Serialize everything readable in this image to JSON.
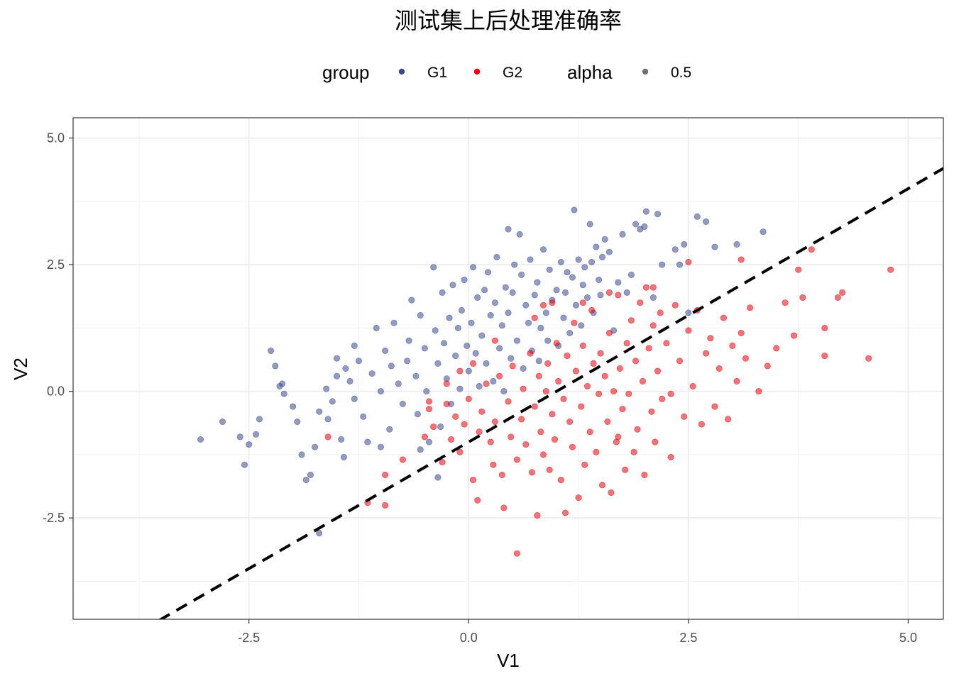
{
  "chart_data": {
    "type": "scatter",
    "title": "测试集上后处理准确率",
    "xlabel": "V1",
    "ylabel": "V2",
    "xlim": [
      -4.5,
      5.4
    ],
    "ylim": [
      -4.5,
      5.4
    ],
    "x_ticks": [
      -2.5,
      0.0,
      2.5,
      5.0
    ],
    "x_tick_labels": [
      "-2.5",
      "0.0",
      "2.5",
      "5.0"
    ],
    "y_ticks": [
      -2.5,
      0.0,
      2.5,
      5.0
    ],
    "y_tick_labels": [
      "-2.5",
      "0.0",
      "2.5",
      "5.0"
    ],
    "grid": true,
    "legend_position": "top",
    "legend": {
      "group_title": "group",
      "group_entries": [
        {
          "label": "G1",
          "color": "#3b4a8c"
        },
        {
          "label": "G2",
          "color": "#e8000b"
        }
      ],
      "alpha_title": "alpha",
      "alpha_entries": [
        {
          "label": "0.5",
          "color": "#333333"
        }
      ]
    },
    "reference_line": {
      "style": "dashed",
      "color": "#000000",
      "slope": 1,
      "intercept": -1
    },
    "series": [
      {
        "name": "G1",
        "color": "#3b4a8c",
        "opacity": 0.55,
        "points": [
          [
            -3.05,
            -0.95
          ],
          [
            -2.8,
            -0.6
          ],
          [
            -2.6,
            -0.9
          ],
          [
            -2.55,
            -1.45
          ],
          [
            -2.5,
            -1.05
          ],
          [
            -2.42,
            -0.85
          ],
          [
            -2.38,
            -0.55
          ],
          [
            -2.25,
            0.8
          ],
          [
            -2.2,
            0.5
          ],
          [
            -2.15,
            0.1
          ],
          [
            -2.1,
            -0.05
          ],
          [
            -2.0,
            -0.3
          ],
          [
            -1.95,
            -0.6
          ],
          [
            -1.9,
            -1.25
          ],
          [
            -1.85,
            -1.75
          ],
          [
            -1.8,
            -1.65
          ],
          [
            -1.75,
            -1.1
          ],
          [
            -1.7,
            -0.4
          ],
          [
            -1.7,
            -2.8
          ],
          [
            -1.62,
            0.05
          ],
          [
            -1.6,
            -0.55
          ],
          [
            -1.55,
            -0.2
          ],
          [
            -1.5,
            0.65
          ],
          [
            -1.5,
            0.3
          ],
          [
            -1.45,
            -0.95
          ],
          [
            -1.42,
            -1.3
          ],
          [
            -1.4,
            0.45
          ],
          [
            -1.35,
            0.2
          ],
          [
            -1.3,
            -0.15
          ],
          [
            -1.3,
            0.9
          ],
          [
            -1.25,
            0.6
          ],
          [
            -1.2,
            -0.5
          ],
          [
            -1.15,
            -1.0
          ],
          [
            -1.1,
            0.35
          ],
          [
            -1.05,
            1.25
          ],
          [
            -1.0,
            0.0
          ],
          [
            -0.95,
            0.8
          ],
          [
            -0.9,
            -0.75
          ],
          [
            -0.88,
            0.5
          ],
          [
            -0.85,
            1.35
          ],
          [
            -0.8,
            0.15
          ],
          [
            -0.75,
            -0.25
          ],
          [
            -0.7,
            0.6
          ],
          [
            -0.68,
            1.0
          ],
          [
            -0.65,
            1.8
          ],
          [
            -0.6,
            0.3
          ],
          [
            -0.58,
            -0.45
          ],
          [
            -0.55,
            1.5
          ],
          [
            -0.5,
            0.85
          ],
          [
            -0.48,
            0.0
          ],
          [
            -0.45,
            -1.0
          ],
          [
            -0.4,
            2.45
          ],
          [
            -0.38,
            1.2
          ],
          [
            -0.35,
            0.55
          ],
          [
            -0.32,
            -0.7
          ],
          [
            -0.3,
            1.95
          ],
          [
            -0.28,
            0.95
          ],
          [
            -0.25,
            0.25
          ],
          [
            -0.22,
            1.45
          ],
          [
            -0.2,
            -0.25
          ],
          [
            -0.18,
            2.1
          ],
          [
            -0.15,
            0.7
          ],
          [
            -0.12,
            1.25
          ],
          [
            -0.1,
            0.05
          ],
          [
            -0.08,
            1.6
          ],
          [
            -0.05,
            2.2
          ],
          [
            -0.02,
            0.9
          ],
          [
            0.0,
            0.4
          ],
          [
            0.03,
            1.35
          ],
          [
            0.05,
            2.45
          ],
          [
            0.08,
            0.75
          ],
          [
            0.1,
            1.85
          ],
          [
            0.12,
            0.1
          ],
          [
            0.15,
            1.1
          ],
          [
            0.18,
            2.0
          ],
          [
            0.2,
            0.55
          ],
          [
            0.22,
            2.35
          ],
          [
            0.25,
            1.5
          ],
          [
            0.28,
            0.2
          ],
          [
            0.3,
            1.75
          ],
          [
            0.32,
            2.65
          ],
          [
            0.35,
            0.85
          ],
          [
            0.38,
            1.3
          ],
          [
            0.4,
            0.0
          ],
          [
            0.42,
            2.05
          ],
          [
            0.45,
            1.55
          ],
          [
            0.45,
            3.2
          ],
          [
            0.48,
            0.65
          ],
          [
            0.5,
            1.95
          ],
          [
            0.52,
            2.5
          ],
          [
            0.55,
            1.0
          ],
          [
            0.58,
            3.1
          ],
          [
            0.6,
            2.3
          ],
          [
            0.62,
            0.45
          ],
          [
            0.65,
            1.7
          ],
          [
            0.68,
            1.35
          ],
          [
            0.7,
            2.6
          ],
          [
            0.72,
            0.8
          ],
          [
            0.75,
            1.9
          ],
          [
            0.78,
            2.15
          ],
          [
            0.8,
            0.6
          ],
          [
            0.82,
            1.25
          ],
          [
            0.85,
            2.8
          ],
          [
            0.88,
            1.55
          ],
          [
            0.9,
            1.0
          ],
          [
            0.92,
            2.4
          ],
          [
            0.95,
            1.8
          ],
          [
            1.0,
            2.0
          ],
          [
            1.02,
            0.9
          ],
          [
            1.05,
            2.55
          ],
          [
            1.08,
            1.45
          ],
          [
            1.1,
            1.95
          ],
          [
            1.12,
            2.35
          ],
          [
            1.15,
            1.15
          ],
          [
            1.18,
            2.25
          ],
          [
            1.2,
            3.58
          ],
          [
            1.22,
            1.7
          ],
          [
            1.25,
            2.6
          ],
          [
            1.28,
            1.3
          ],
          [
            1.3,
            2.1
          ],
          [
            1.32,
            2.45
          ],
          [
            1.35,
            1.85
          ],
          [
            1.38,
            3.3
          ],
          [
            1.4,
            2.55
          ],
          [
            1.42,
            1.55
          ],
          [
            1.45,
            2.85
          ],
          [
            1.48,
            2.2
          ],
          [
            1.5,
            1.9
          ],
          [
            1.52,
            2.65
          ],
          [
            1.55,
            3.0
          ],
          [
            1.6,
            2.75
          ],
          [
            1.65,
            1.2
          ],
          [
            1.7,
            2.15
          ],
          [
            1.75,
            3.1
          ],
          [
            1.8,
            1.95
          ],
          [
            1.85,
            2.3
          ],
          [
            1.9,
            3.3
          ],
          [
            1.95,
            3.2
          ],
          [
            2.0,
            3.25
          ],
          [
            2.02,
            3.55
          ],
          [
            2.1,
            1.85
          ],
          [
            2.15,
            3.5
          ],
          [
            2.2,
            2.5
          ],
          [
            2.35,
            2.8
          ],
          [
            2.4,
            2.5
          ],
          [
            2.45,
            2.9
          ],
          [
            2.6,
            3.45
          ],
          [
            2.7,
            3.35
          ],
          [
            2.8,
            2.85
          ],
          [
            3.05,
            2.9
          ],
          [
            3.35,
            3.15
          ],
          [
            2.5,
            1.55
          ],
          [
            -2.12,
            0.15
          ],
          [
            -1.0,
            -1.1
          ],
          [
            -0.55,
            -1.15
          ],
          [
            -0.35,
            -1.7
          ]
        ]
      },
      {
        "name": "G2",
        "color": "#e8000b",
        "opacity": 0.55,
        "points": [
          [
            -1.6,
            -0.9
          ],
          [
            -1.15,
            -2.2
          ],
          [
            -0.95,
            -2.25
          ],
          [
            -0.95,
            -1.65
          ],
          [
            -0.75,
            -1.35
          ],
          [
            -0.5,
            -0.9
          ],
          [
            -0.45,
            -0.35
          ],
          [
            -0.4,
            -0.7
          ],
          [
            -0.3,
            -1.4
          ],
          [
            -0.25,
            -0.25
          ],
          [
            -0.2,
            -0.95
          ],
          [
            -0.15,
            -0.5
          ],
          [
            -0.1,
            0.4
          ],
          [
            -0.1,
            -1.2
          ],
          [
            -0.05,
            -0.65
          ],
          [
            0.0,
            -0.15
          ],
          [
            0.05,
            -1.75
          ],
          [
            0.05,
            0.55
          ],
          [
            0.1,
            -2.15
          ],
          [
            0.12,
            -0.8
          ],
          [
            0.15,
            -0.4
          ],
          [
            0.2,
            0.15
          ],
          [
            0.25,
            -1.0
          ],
          [
            0.28,
            -1.45
          ],
          [
            0.3,
            -0.6
          ],
          [
            0.35,
            0.3
          ],
          [
            0.38,
            -1.65
          ],
          [
            0.4,
            -2.3
          ],
          [
            0.45,
            -0.2
          ],
          [
            0.48,
            -0.9
          ],
          [
            0.5,
            0.5
          ],
          [
            0.55,
            -1.35
          ],
          [
            0.55,
            -3.2
          ],
          [
            0.6,
            -0.55
          ],
          [
            0.62,
            0.05
          ],
          [
            0.65,
            -1.05
          ],
          [
            0.7,
            0.75
          ],
          [
            0.72,
            -1.6
          ],
          [
            0.75,
            -0.3
          ],
          [
            0.78,
            -2.45
          ],
          [
            0.8,
            0.3
          ],
          [
            0.82,
            -0.8
          ],
          [
            0.85,
            -1.25
          ],
          [
            0.88,
            0.0
          ],
          [
            0.9,
            0.55
          ],
          [
            0.92,
            -1.55
          ],
          [
            0.95,
            -0.45
          ],
          [
            0.98,
            -0.95
          ],
          [
            1.0,
            0.95
          ],
          [
            1.02,
            0.2
          ],
          [
            1.05,
            -1.75
          ],
          [
            1.08,
            -0.15
          ],
          [
            1.1,
            -2.4
          ],
          [
            1.12,
            0.7
          ],
          [
            1.15,
            -0.6
          ],
          [
            1.18,
            -1.1
          ],
          [
            1.2,
            1.35
          ],
          [
            1.22,
            0.4
          ],
          [
            1.25,
            -2.1
          ],
          [
            1.28,
            -0.3
          ],
          [
            1.3,
            0.9
          ],
          [
            1.32,
            -1.45
          ],
          [
            1.35,
            0.1
          ],
          [
            1.38,
            -0.8
          ],
          [
            1.4,
            1.6
          ],
          [
            1.42,
            0.55
          ],
          [
            1.45,
            -1.2
          ],
          [
            1.48,
            -0.05
          ],
          [
            1.5,
            0.75
          ],
          [
            1.52,
            -1.85
          ],
          [
            1.55,
            0.3
          ],
          [
            1.58,
            -0.6
          ],
          [
            1.6,
            1.15
          ],
          [
            1.62,
            -2.0
          ],
          [
            1.65,
            0.0
          ],
          [
            1.68,
            -1.0
          ],
          [
            1.7,
            1.9
          ],
          [
            1.72,
            0.45
          ],
          [
            1.75,
            -0.35
          ],
          [
            1.78,
            -1.55
          ],
          [
            1.8,
            0.95
          ],
          [
            1.82,
            -0.05
          ],
          [
            1.85,
            1.4
          ],
          [
            1.88,
            -1.2
          ],
          [
            1.9,
            0.6
          ],
          [
            1.92,
            -0.75
          ],
          [
            1.95,
            1.75
          ],
          [
            1.98,
            0.2
          ],
          [
            2.0,
            -1.65
          ],
          [
            2.02,
            2.05
          ],
          [
            2.05,
            0.85
          ],
          [
            2.08,
            -0.4
          ],
          [
            2.1,
            1.3
          ],
          [
            2.12,
            -1.0
          ],
          [
            2.15,
            0.4
          ],
          [
            2.18,
            1.55
          ],
          [
            2.2,
            -0.15
          ],
          [
            2.25,
            0.95
          ],
          [
            2.3,
            -1.3
          ],
          [
            2.35,
            1.7
          ],
          [
            2.4,
            0.6
          ],
          [
            2.45,
            -0.5
          ],
          [
            2.5,
            1.2
          ],
          [
            2.55,
            0.1
          ],
          [
            2.6,
            1.6
          ],
          [
            2.65,
            -0.65
          ],
          [
            2.7,
            0.75
          ],
          [
            2.75,
            1.05
          ],
          [
            2.8,
            -0.3
          ],
          [
            2.85,
            0.45
          ],
          [
            2.9,
            1.45
          ],
          [
            2.95,
            -0.55
          ],
          [
            3.0,
            0.9
          ],
          [
            3.05,
            0.2
          ],
          [
            3.1,
            1.15
          ],
          [
            3.15,
            0.65
          ],
          [
            3.2,
            1.65
          ],
          [
            3.3,
            0.0
          ],
          [
            3.4,
            0.5
          ],
          [
            3.5,
            0.85
          ],
          [
            3.6,
            1.75
          ],
          [
            3.7,
            1.1
          ],
          [
            3.75,
            2.4
          ],
          [
            3.8,
            1.85
          ],
          [
            3.9,
            2.8
          ],
          [
            4.05,
            1.25
          ],
          [
            4.05,
            0.7
          ],
          [
            4.2,
            1.85
          ],
          [
            4.25,
            1.95
          ],
          [
            4.55,
            0.65
          ],
          [
            4.8,
            2.4
          ],
          [
            3.1,
            2.6
          ],
          [
            2.5,
            2.55
          ],
          [
            2.1,
            2.05
          ],
          [
            1.6,
            1.95
          ],
          [
            1.3,
            1.75
          ],
          [
            0.95,
            1.75
          ],
          [
            0.75,
            1.45
          ],
          [
            -0.25,
            0.15
          ],
          [
            -0.45,
            -0.2
          ],
          [
            0.3,
            1.0
          ],
          [
            0.85,
            1.7
          ],
          [
            2.3,
            -0.05
          ],
          [
            1.7,
            -0.9
          ]
        ]
      }
    ]
  }
}
